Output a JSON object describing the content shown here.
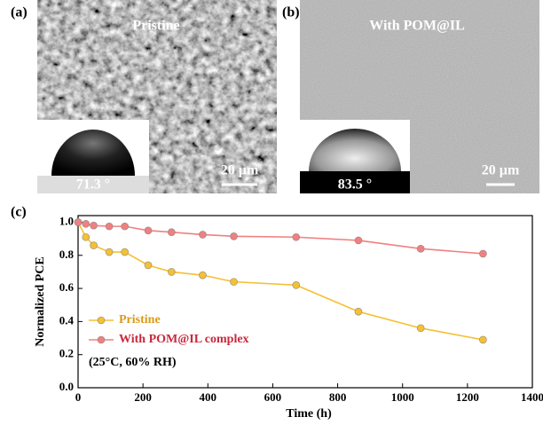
{
  "images": [
    {
      "label": "(a)",
      "caption": "Pristine",
      "angle": "71.3 °",
      "scale_bar": "20 µm"
    },
    {
      "label": "(b)",
      "caption": "With POM@IL",
      "angle": "83.5 °",
      "scale_bar": "20 µm"
    }
  ],
  "chart_data": {
    "type": "line",
    "label": "(c)",
    "x_label": "Time (h)",
    "y_label": "Normalized PCE",
    "annotation": "(25°C, 60% RH)",
    "series": [
      {
        "name": "Pristine",
        "color": "#f5c033",
        "label_color": "#d99a1a",
        "x": [
          0,
          24,
          48,
          96,
          144,
          216,
          288,
          384,
          480,
          672,
          864,
          1056,
          1248
        ],
        "values": [
          1.0,
          0.91,
          0.86,
          0.82,
          0.82,
          0.74,
          0.7,
          0.68,
          0.64,
          0.62,
          0.46,
          0.36,
          0.29
        ]
      },
      {
        "name": "With POM@IL complex",
        "color": "#f08080",
        "label_color": "#c8283c",
        "x": [
          0,
          24,
          48,
          96,
          144,
          216,
          288,
          384,
          480,
          672,
          864,
          1056,
          1248
        ],
        "values": [
          1.0,
          0.99,
          0.98,
          0.975,
          0.975,
          0.95,
          0.94,
          0.925,
          0.915,
          0.91,
          0.89,
          0.84,
          0.81
        ]
      }
    ],
    "xlim": [
      0,
      1400
    ],
    "xticks": [
      0,
      200,
      400,
      600,
      800,
      1000,
      1200,
      1400
    ],
    "ylim": [
      0,
      1.04
    ],
    "yticks": [
      {
        "value": 0,
        "label": "0.0"
      },
      {
        "value": 0.2,
        "label": "0.2"
      },
      {
        "value": 0.4,
        "label": "0.4"
      },
      {
        "value": 0.6,
        "label": "0.6"
      },
      {
        "value": 0.8,
        "label": "0.8"
      },
      {
        "value": 1.0,
        "label": "1.0"
      }
    ]
  }
}
